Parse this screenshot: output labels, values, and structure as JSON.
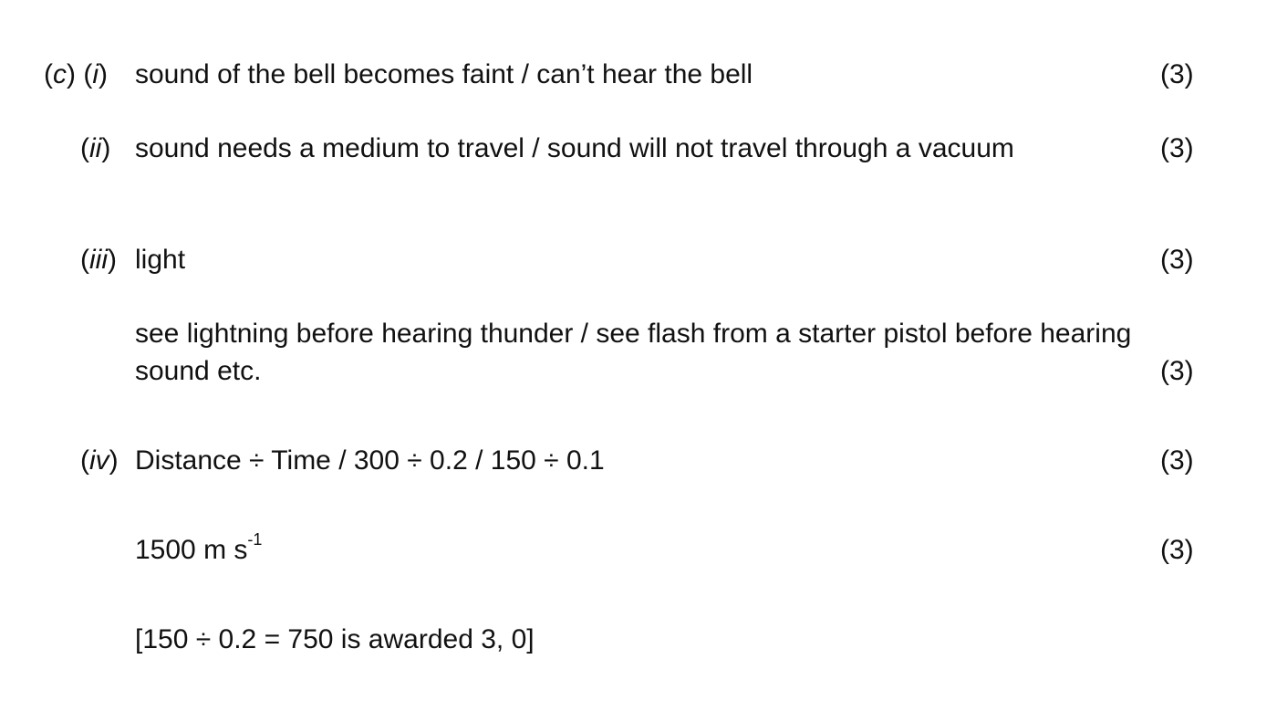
{
  "items": {
    "c_i": {
      "part_letter": "c",
      "sub_numeral": "i",
      "text": "sound of the bell becomes faint / can’t hear the bell",
      "marks": "(3)"
    },
    "c_ii": {
      "sub_numeral": "ii",
      "text": "sound needs a medium to travel / sound will not travel through a vacuum",
      "marks": "(3)"
    },
    "c_iii": {
      "sub_numeral": "iii",
      "text": "light",
      "marks": "(3)",
      "example_line1": "see lightning before hearing thunder / see flash from a starter pistol before hearing",
      "example_line2": "sound etc.",
      "example_marks": "(3)"
    },
    "c_iv": {
      "sub_numeral": "iv",
      "text": "Distance ÷ Time / 300 ÷ 0.2 / 150 ÷ 0.1",
      "marks": "(3)",
      "answer_value": "1500 m s",
      "answer_exponent": "-1",
      "answer_marks": "(3)",
      "note": "[150 ÷ 0.2 = 750 is awarded 3, 0]"
    }
  }
}
